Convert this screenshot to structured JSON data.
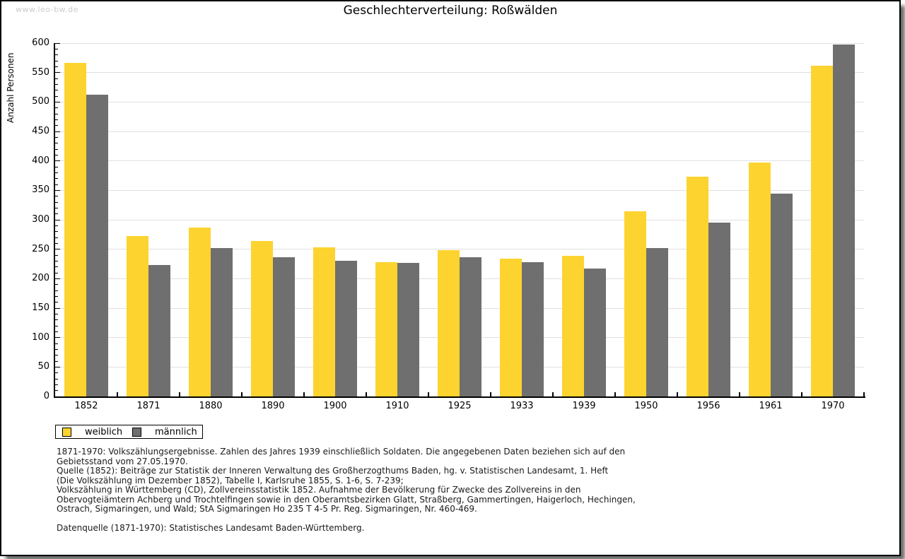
{
  "watermark": "www.leo-bw.de",
  "title": "Geschlechterverteilung: Roßwälden",
  "chart_data": {
    "type": "bar",
    "title": "Geschlechterverteilung: Roßwälden",
    "xlabel": "",
    "ylabel": "Anzahl Personen",
    "ylim": [
      0,
      600
    ],
    "y_major_step": 50,
    "y_minor_step": 10,
    "grid": true,
    "legend_position": "bottom-left",
    "categories": [
      "1852",
      "1871",
      "1880",
      "1890",
      "1900",
      "1910",
      "1925",
      "1933",
      "1939",
      "1950",
      "1956",
      "1961",
      "1970"
    ],
    "series": [
      {
        "name": "weiblich",
        "color": "#FDD32F",
        "values": [
          567,
          272,
          287,
          264,
          253,
          228,
          248,
          234,
          239,
          314,
          373,
          397,
          562
        ]
      },
      {
        "name": "männlich",
        "color": "#6F6F6F",
        "values": [
          513,
          223,
          252,
          237,
          231,
          227,
          236,
          228,
          217,
          252,
          295,
          345,
          598
        ]
      }
    ]
  },
  "colors": {
    "female_bar": "#FDD32F",
    "male_bar": "#6F6F6F",
    "gridline": "#e0e0e0",
    "axis": "#000000",
    "watermark": "#cccccc"
  },
  "footer": {
    "lines": [
      "1871-1970: Volkszählungsergebnisse. Zahlen des Jahres 1939 einschließlich Soldaten. Die angegebenen Daten beziehen sich auf den",
      "Gebietsstand vom 27.05.1970.",
      "Quelle (1852): Beiträge zur Statistik der Inneren Verwaltung des Großherzogthums Baden, hg. v. Statistischen Landesamt, 1. Heft",
      "(Die Volkszählung im Dezember 1852), Tabelle I, Karlsruhe 1855, S. 1-6, S. 7-239;",
      "Volkszählung in Württemberg (CD), Zollvereinsstatistik 1852. Aufnahme der Bevölkerung für Zwecke des Zollvereins in den",
      "Obervogteiämtern Achberg und Trochtelfingen sowie in den Oberamtsbezirken Glatt, Straßberg, Gammertingen, Haigerloch, Hechingen,",
      "Ostrach, Sigmaringen, und Wald; StA Sigmaringen Ho 235 T 4-5 Pr. Reg. Sigmaringen, Nr. 460-469."
    ],
    "source_line": "Datenquelle (1871-1970): Statistisches Landesamt Baden-Württemberg."
  }
}
